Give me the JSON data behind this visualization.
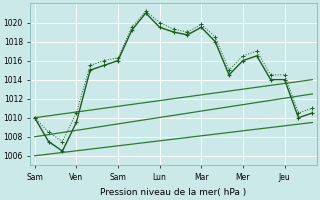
{
  "background_color": "#cce9ea",
  "grid_color": "#b0d8da",
  "line_color_dark": "#1a5c1a",
  "line_color_med": "#2d7a2d",
  "xlabel": "Pression niveau de la mer( hPa )",
  "ylim": [
    1005,
    1022
  ],
  "yticks": [
    1006,
    1008,
    1010,
    1012,
    1014,
    1016,
    1018,
    1020
  ],
  "xtick_positions": [
    0,
    3,
    6,
    9,
    12,
    15,
    18
  ],
  "xlabels": [
    "Sam",
    "Ven",
    "Sam",
    "Lun",
    "Mar",
    "Mer",
    "Jeu"
  ],
  "xlim": [
    -0.3,
    20.3
  ],
  "s1x": [
    0,
    1,
    2,
    3,
    4,
    5,
    6,
    7,
    8,
    9,
    10,
    11,
    12,
    13,
    14,
    15,
    16,
    17,
    18,
    19,
    20
  ],
  "s1y": [
    1010.0,
    1007.5,
    1006.5,
    1009.5,
    1015.0,
    1015.5,
    1016.0,
    1019.2,
    1021.0,
    1019.5,
    1019.0,
    1018.7,
    1019.5,
    1018.0,
    1014.5,
    1016.0,
    1016.5,
    1014.0,
    1014.0,
    1010.0,
    1010.5
  ],
  "s2x": [
    0,
    1,
    2,
    3,
    4,
    5,
    6,
    7,
    8,
    9,
    10,
    11,
    12,
    13,
    14,
    15,
    16,
    17,
    18,
    19,
    20
  ],
  "s2y": [
    1010.0,
    1008.5,
    1007.5,
    1010.5,
    1015.5,
    1016.0,
    1016.3,
    1019.5,
    1021.2,
    1020.0,
    1019.3,
    1019.0,
    1019.8,
    1018.5,
    1015.0,
    1016.5,
    1017.0,
    1014.5,
    1014.5,
    1010.5,
    1011.0
  ],
  "lin1x": [
    0,
    20
  ],
  "lin1y": [
    1010.0,
    1014.0
  ],
  "lin2x": [
    0,
    20
  ],
  "lin2y": [
    1008.0,
    1012.5
  ],
  "lin3x": [
    0,
    20
  ],
  "lin3y": [
    1006.0,
    1009.5
  ]
}
